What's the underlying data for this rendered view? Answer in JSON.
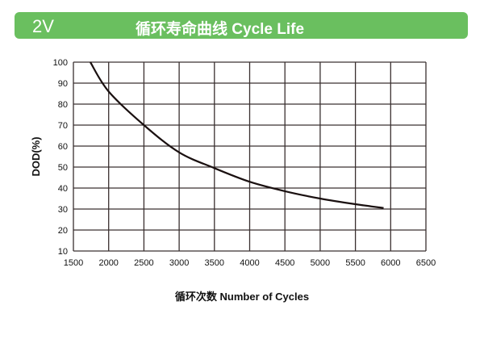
{
  "header": {
    "voltage": "2V",
    "title": "循环寿命曲线 Cycle Life",
    "color": "#6abf5f"
  },
  "chart_data": {
    "type": "line",
    "title": "循环寿命曲线 Cycle Life",
    "xlabel": "循环次数 Number of Cycles",
    "ylabel": "DOD(%)",
    "xlim": [
      1500,
      6500
    ],
    "ylim": [
      10,
      100
    ],
    "grid": true,
    "xticks": [
      "1500",
      "2000",
      "2500",
      "3000",
      "3500",
      "4000",
      "4500",
      "5000",
      "5500",
      "6000",
      "6500"
    ],
    "yticks": [
      "10",
      "20",
      "30",
      "40",
      "50",
      "60",
      "70",
      "80",
      "90",
      "100"
    ],
    "series": [
      {
        "x": [
          1740,
          2000,
          2500,
          3000,
          3500,
          4000,
          4500,
          5000,
          5500,
          5900
        ],
        "y": [
          100,
          86,
          70,
          57,
          49.5,
          43,
          38.5,
          35,
          32.3,
          30.5
        ],
        "color": "#1a1010"
      }
    ]
  }
}
